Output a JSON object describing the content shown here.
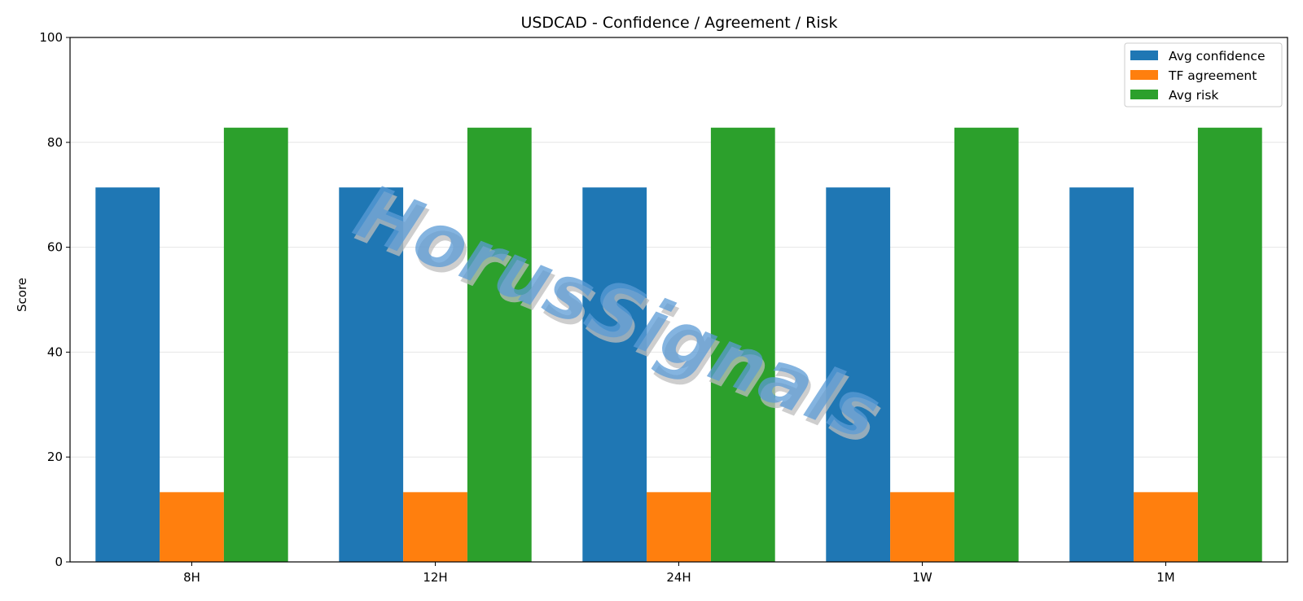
{
  "chart_data": {
    "type": "bar",
    "title": "USDCAD - Confidence / Agreement / Risk",
    "xlabel": "",
    "ylabel": "Score",
    "ylim": [
      0,
      100
    ],
    "yticks": [
      0,
      20,
      40,
      60,
      80,
      100
    ],
    "categories": [
      "8H",
      "12H",
      "24H",
      "1W",
      "1M"
    ],
    "series": [
      {
        "name": "Avg confidence",
        "color": "#1f77b4",
        "values": [
          71.4,
          71.4,
          71.4,
          71.4,
          71.4
        ]
      },
      {
        "name": "TF agreement",
        "color": "#ff7f0e",
        "values": [
          13.3,
          13.3,
          13.3,
          13.3,
          13.3
        ]
      },
      {
        "name": "Avg risk",
        "color": "#2ca02c",
        "values": [
          82.8,
          82.8,
          82.8,
          82.8,
          82.8
        ]
      }
    ],
    "grid": "horizontal",
    "legend_position": "top-right",
    "watermark": "HorusSignals"
  }
}
